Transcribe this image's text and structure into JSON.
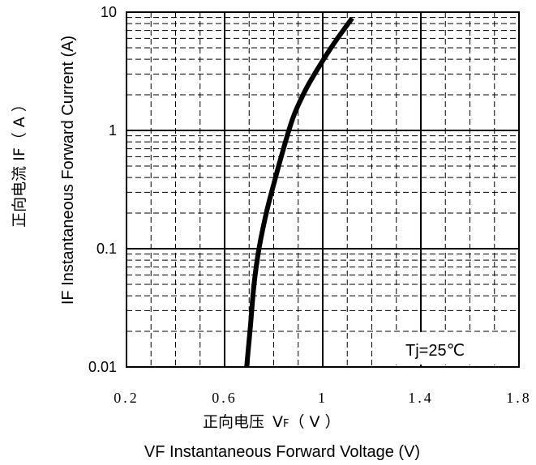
{
  "chart_data": {
    "type": "line",
    "title": "",
    "xlabel_cn": "正向电压",
    "xlabel_sym": "V",
    "xlabel_sub": "F",
    "xlabel_unit": "（ V ）",
    "xlabel_en": "VF  Instantaneous Forward Voltage (V)",
    "ylabel_cn": "正向电流  IF（ A ）",
    "ylabel_en": "IF Instantaneous Forward Current (A)",
    "xlim": [
      0.2,
      1.8
    ],
    "ylim": [
      0.01,
      10
    ],
    "yscale": "log",
    "grid": true,
    "x_ticks": [
      {
        "value": 0.2,
        "label": "0.2"
      },
      {
        "value": 0.6,
        "label": "0.6"
      },
      {
        "value": 1.0,
        "label": "1"
      },
      {
        "value": 1.4,
        "label": "1.4"
      },
      {
        "value": 1.8,
        "label": "1.8"
      }
    ],
    "y_ticks": [
      {
        "value": 0.01,
        "label": "0.01"
      },
      {
        "value": 0.1,
        "label": "0.1"
      },
      {
        "value": 1,
        "label": "1"
      },
      {
        "value": 10,
        "label": "10"
      }
    ],
    "annotation": "Tj=25℃",
    "series": [
      {
        "color": "#000000",
        "x": [
          0.69,
          0.705,
          0.72,
          0.74,
          0.77,
          0.8,
          0.84,
          0.88,
          0.93,
          0.99,
          1.05,
          1.12
        ],
        "y": [
          0.01,
          0.022,
          0.05,
          0.1,
          0.2,
          0.35,
          0.7,
          1.3,
          2.2,
          3.6,
          5.6,
          8.9
        ]
      }
    ]
  }
}
